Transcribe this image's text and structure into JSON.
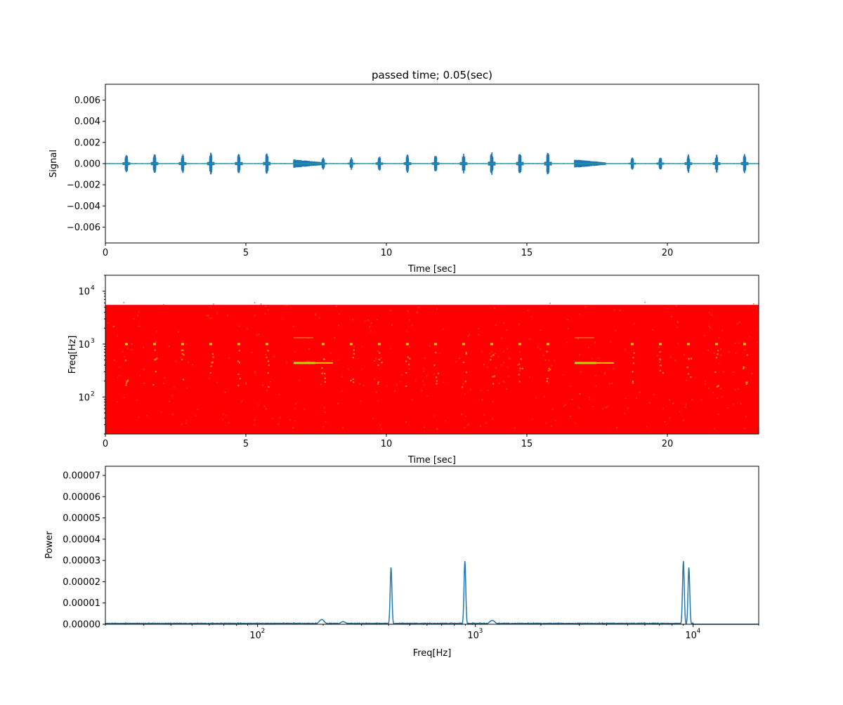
{
  "title": "passed time; 0.05(sec)",
  "chart_data": [
    {
      "type": "line",
      "title": "passed time; 0.05(sec)",
      "xlabel": "Time [sec]",
      "ylabel": "Signal",
      "xlim": [
        0,
        23.25
      ],
      "ylim": [
        -0.0075,
        0.0075
      ],
      "xticks": [
        0,
        5,
        10,
        15,
        20
      ],
      "yticks": [
        -0.006,
        -0.004,
        -0.002,
        0.0,
        0.002,
        0.004,
        0.006
      ],
      "ytick_labels": [
        "−0.006",
        "−0.004",
        "−0.002",
        "0.000",
        "0.002",
        "0.004",
        "0.006"
      ],
      "color": "#1f77b4",
      "bursts": [
        {
          "t": 0.75,
          "amp": 0.0009
        },
        {
          "t": 1.75,
          "amp": 0.001
        },
        {
          "t": 2.75,
          "amp": 0.001
        },
        {
          "t": 3.75,
          "amp": 0.0011
        },
        {
          "t": 4.75,
          "amp": 0.001
        },
        {
          "t": 5.75,
          "amp": 0.0011
        },
        {
          "t": 7.75,
          "amp": 0.0006
        },
        {
          "t": 8.75,
          "amp": 0.0006
        },
        {
          "t": 9.75,
          "amp": 0.0008
        },
        {
          "t": 10.75,
          "amp": 0.0009
        },
        {
          "t": 11.75,
          "amp": 0.0009
        },
        {
          "t": 12.75,
          "amp": 0.001
        },
        {
          "t": 13.75,
          "amp": 0.0012
        },
        {
          "t": 14.75,
          "amp": 0.0011
        },
        {
          "t": 15.75,
          "amp": 0.0012
        },
        {
          "t": 18.75,
          "amp": 0.0006
        },
        {
          "t": 19.75,
          "amp": 0.0007
        },
        {
          "t": 20.75,
          "amp": 0.0009
        },
        {
          "t": 21.75,
          "amp": 0.0009
        },
        {
          "t": 22.75,
          "amp": 0.001
        }
      ],
      "tones": [
        {
          "start": 6.7,
          "end": 7.8,
          "amp": 0.0004
        },
        {
          "start": 16.7,
          "end": 17.8,
          "amp": 0.0004
        }
      ]
    },
    {
      "type": "heatmap",
      "xlabel": "Time [sec]",
      "ylabel": "Freq[Hz]",
      "xlim": [
        0,
        23.25
      ],
      "ylim": [
        20,
        20000
      ],
      "yscale": "log",
      "xticks": [
        0,
        5,
        10,
        15,
        20
      ],
      "yticks": [
        100,
        1000,
        10000
      ],
      "ytick_exponents": [
        "2",
        "3",
        "4"
      ],
      "max_freq": 5512,
      "background_color": "#ff0000",
      "event_color": "#ffd000",
      "event_times": [
        0.75,
        1.75,
        2.75,
        3.75,
        4.75,
        5.75,
        7.75,
        8.75,
        9.75,
        10.75,
        11.75,
        12.75,
        13.75,
        14.75,
        15.75,
        18.75,
        19.75,
        20.75,
        21.75,
        22.75
      ],
      "event_freq": 1000,
      "tone_lines": [
        {
          "start": 6.7,
          "end": 8.1,
          "freq": 440
        },
        {
          "start": 16.7,
          "end": 18.1,
          "freq": 440
        }
      ]
    },
    {
      "type": "line",
      "xlabel": "Freq[Hz]",
      "ylabel": "Power",
      "xlim": [
        20,
        20000
      ],
      "xscale": "log",
      "ylim": [
        0,
        7.43e-05
      ],
      "xticks": [
        100,
        1000,
        10000
      ],
      "xtick_exponents": [
        "2",
        "3",
        "4"
      ],
      "yticks": [
        0,
        1e-05,
        2e-05,
        3e-05,
        4e-05,
        5e-05,
        6e-05,
        7e-05
      ],
      "ytick_labels": [
        "0.00000",
        "0.00001",
        "0.00002",
        "0.00003",
        "0.00004",
        "0.00005",
        "0.00006",
        "0.00007"
      ],
      "color": "#1f77b4",
      "baseline_power": 4e-07,
      "max_freq": 10000,
      "peaks": [
        {
          "freq": 197,
          "power": 2.2e-06
        },
        {
          "freq": 247,
          "power": 1.2e-06
        },
        {
          "freq": 410,
          "power": 2.65e-05
        },
        {
          "freq": 895,
          "power": 2.95e-05
        },
        {
          "freq": 1195,
          "power": 1.8e-06
        },
        {
          "freq": 9020,
          "power": 2.95e-05
        },
        {
          "freq": 9560,
          "power": 2.65e-05
        }
      ]
    }
  ]
}
